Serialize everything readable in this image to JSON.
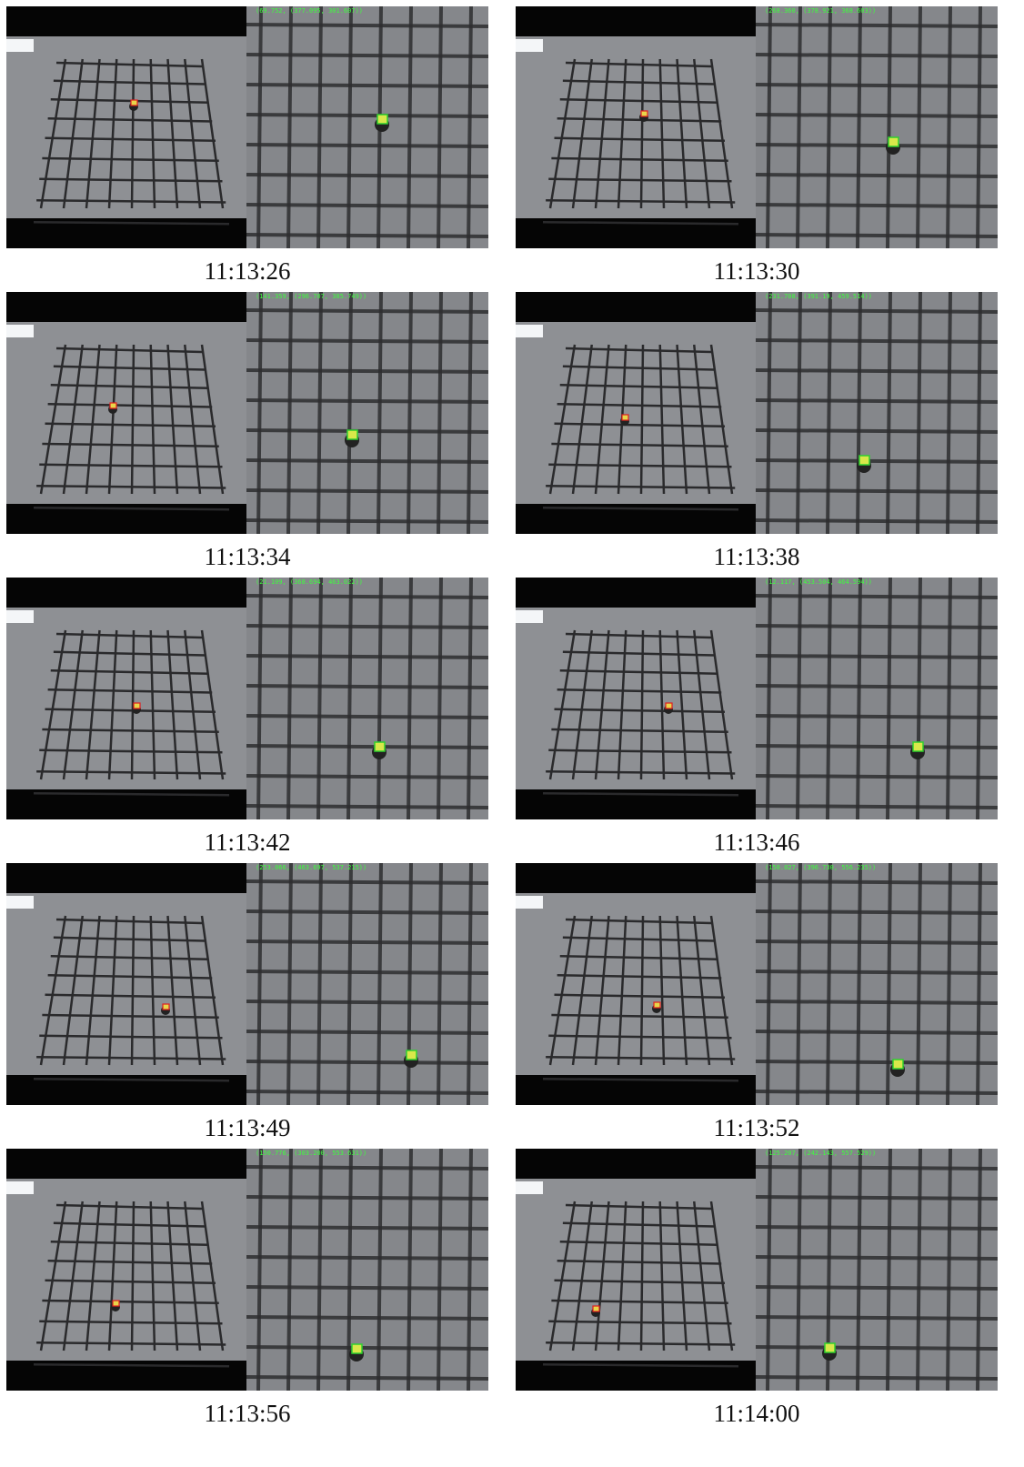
{
  "panels": [
    {
      "coordinates": "(69.752, (377.095, 301.607))",
      "timestamp": "11:13:26"
    },
    {
      "coordinates": "(268.360, (378.921, 368.603))",
      "timestamp": "11:13:30"
    },
    {
      "coordinates": "(141.359, (296.707, 385.749))",
      "timestamp": "11:13:34"
    },
    {
      "coordinates": "(231.708, (391.19, 459.514))",
      "timestamp": "11:13:38"
    },
    {
      "coordinates": "(21.109, (368.694, 463.022))",
      "timestamp": "11:13:42"
    },
    {
      "coordinates": "(12.117, (453.504, 464.594))",
      "timestamp": "11:13:46"
    },
    {
      "coordinates": "(253.066, (463.697, 537.215))",
      "timestamp": "11:13:49"
    },
    {
      "coordinates": "(150.027, (396.730, 556.235))",
      "timestamp": "11:13:52"
    },
    {
      "coordinates": "(150.776, (303.200, 553.631))",
      "timestamp": "11:13:56"
    },
    {
      "coordinates": "(125.207, (242.143, 557.529))",
      "timestamp": "11:14:00"
    }
  ]
}
